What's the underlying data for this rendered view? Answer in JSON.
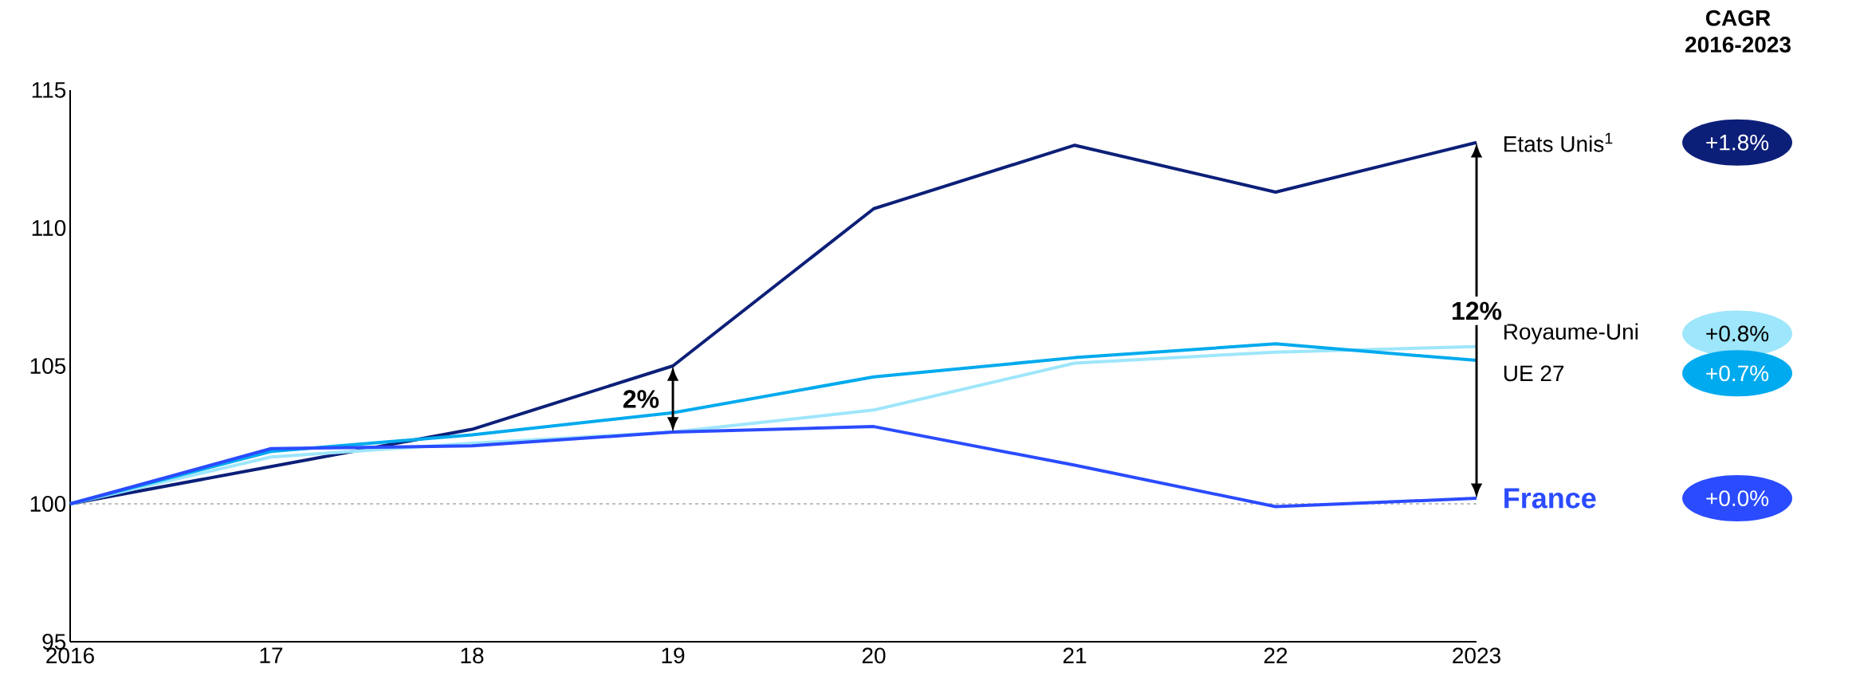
{
  "chart_data": {
    "type": "line",
    "x": [
      2016,
      2017,
      2018,
      2019,
      2020,
      2021,
      2022,
      2023
    ],
    "series": [
      {
        "name": "Etats Unis$^{1}$",
        "color": "#0c1f78",
        "values": [
          100,
          101.35,
          102.7,
          105.0,
          110.7,
          113.0,
          111.3,
          113.1
        ]
      },
      {
        "name": "Royaume-Uni",
        "color": "#9ee6fb",
        "values": [
          100,
          101.7,
          102.2,
          102.6,
          103.4,
          105.1,
          105.5,
          105.7
        ]
      },
      {
        "name": "UE 27",
        "color": "#00aaee",
        "values": [
          100,
          101.9,
          102.5,
          103.3,
          104.6,
          105.3,
          105.8,
          105.2
        ]
      },
      {
        "name": "France",
        "color": "#2a4bff",
        "values": [
          100,
          102.0,
          102.1,
          102.6,
          102.8,
          101.4,
          99.9,
          100.2
        ]
      }
    ],
    "xlim": [
      2016,
      2023
    ],
    "xticks": [
      2016,
      {
        "value": 2017,
        "label": "17"
      },
      {
        "value": 2018,
        "label": "18"
      },
      {
        "value": 2019,
        "label": "19"
      },
      {
        "value": 2020,
        "label": "20"
      },
      {
        "value": 2021,
        "label": "21"
      },
      {
        "value": 2022,
        "label": "22"
      },
      2023
    ],
    "ylim": [
      95,
      115
    ],
    "yticks": [
      95,
      100,
      105,
      110,
      115
    ],
    "grid": false,
    "legend": false,
    "marker": "none",
    "line_style": "solid",
    "ref_lines": [
      {
        "axis": "y",
        "value": 100,
        "color": "#aaaaaa",
        "line_style": "dashed"
      }
    ],
    "annotations": [
      {
        "text": "2%",
        "x": 2019,
        "y": 105.0
      },
      "12%",
      "CAGR 2016-2023",
      "+1.8%",
      "+0.8%",
      "+0.7%",
      "+0.0%"
    ]
  }
}
